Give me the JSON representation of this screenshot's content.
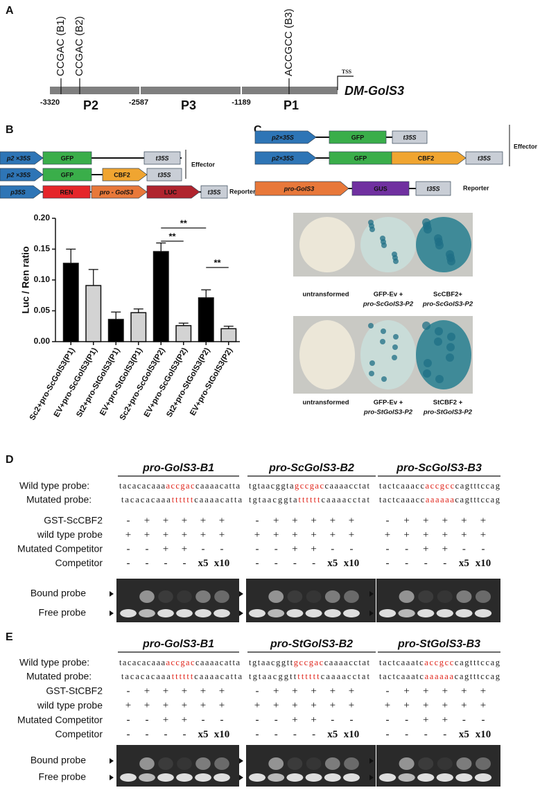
{
  "panel_a": {
    "letter": "A",
    "sites": [
      "CCGAC (B1)",
      "CCGAC (B2)",
      "ACCGCC (B3)"
    ],
    "tss": "TSS",
    "gene": "DM-GolS3",
    "positions": [
      "-3320",
      "-2587",
      "-1189"
    ],
    "regions": [
      "P2",
      "P3",
      "P1"
    ]
  },
  "panel_b": {
    "letter": "B",
    "constructs": [
      [
        "p2 ×35S",
        "GFP",
        "t35S"
      ],
      [
        "p2 ×35S",
        "GFP",
        "CBF2",
        "t35S"
      ],
      [
        "p35S",
        "REN",
        "pro - GolS3",
        "LUC",
        "t35S"
      ]
    ],
    "effector": "Effector",
    "reporter": "Reporter"
  },
  "chart_data": {
    "type": "bar",
    "y_label": "Luc / Ren ratio",
    "categories": [
      "Sc2+pro-ScGolS3(P1)",
      "EV+pro-ScGolS3(P1)",
      "St2+pro-StGolS3(P1)",
      "EV+pro-StGolS3(P1)",
      "Sc2+pro-ScGolS3(P2)",
      "EV+pro-ScGolS3(P2)",
      "St2+pro-StGolS3(P2)",
      "EV+pro-StGolS3(P2)"
    ],
    "values": [
      0.127,
      0.091,
      0.036,
      0.047,
      0.146,
      0.026,
      0.071,
      0.021
    ],
    "errors": [
      0.023,
      0.026,
      0.012,
      0.006,
      0.014,
      0.004,
      0.013,
      0.004
    ],
    "colors": [
      "#000000",
      "#d3d3d3",
      "#000000",
      "#d3d3d3",
      "#000000",
      "#d3d3d3",
      "#000000",
      "#d3d3d3"
    ],
    "ylim": [
      0,
      0.2
    ],
    "yticks": [
      {
        "value": 0,
        "label": "0.00"
      },
      {
        "value": 0.05,
        "label": "0.05"
      },
      {
        "value": 0.1,
        "label": "0.10"
      },
      {
        "value": 0.15,
        "label": "0.15"
      },
      {
        "value": 0.2,
        "label": "0.20"
      }
    ],
    "significance": [
      "**",
      "**",
      "**"
    ]
  },
  "panel_c": {
    "letter": "C",
    "constructs": [
      [
        "p2×35S",
        "GFP",
        "t35S"
      ],
      [
        "p2×35S",
        "GFP",
        "CBF2",
        "t35S"
      ],
      [
        "pro-GolS3",
        "GUS",
        "t35S"
      ]
    ],
    "effector": "Effector",
    "reporter": "Reporter",
    "leaf_rows": [
      [
        [
          "untransformed"
        ],
        [
          "GFP-Ev +",
          "pro-ScGolS3-P2"
        ],
        [
          "ScCBF2+",
          "pro-ScGolS3-P2"
        ]
      ],
      [
        [
          "untransformed"
        ],
        [
          "GFP-Ev +",
          "pro-StGolS3-P2"
        ],
        [
          "StCBF2 +",
          "pro-StGolS3-P2"
        ]
      ]
    ]
  },
  "panel_d": {
    "letter": "D",
    "wild_label": "Wild type probe:",
    "mutated_label": "Mutated probe:",
    "row_labels": [
      "GST-ScCBF2",
      "wild type probe",
      "Mutated Competitor",
      "Competitor"
    ],
    "bound": "Bound probe",
    "free": "Free probe",
    "blocks": [
      {
        "title": "pro-GolS3-B1",
        "wild": [
          "tacacacaaa",
          "accgac",
          "caaaacatta"
        ],
        "mutated": [
          "tacacacaaa",
          "tttttt",
          "caaaacatta"
        ],
        "lanes": [
          [
            "-",
            "+",
            "+",
            "+",
            "+",
            "+"
          ],
          [
            "+",
            "+",
            "+",
            "+",
            "+",
            "+"
          ],
          [
            "-",
            "-",
            "+",
            "+",
            "-",
            "-"
          ],
          [
            "-",
            "-",
            "-",
            "-",
            "x5",
            "x10"
          ]
        ]
      },
      {
        "title": "pro-ScGolS3-B2",
        "wild": [
          "tgtaacggta",
          "gccgac",
          "caaaacctat"
        ],
        "mutated": [
          "tgtaacggta",
          "tttttt",
          "caaaacctat"
        ],
        "lanes": [
          [
            "-",
            "+",
            "+",
            "+",
            "+",
            "+"
          ],
          [
            "+",
            "+",
            "+",
            "+",
            "+",
            "+"
          ],
          [
            "-",
            "-",
            "+",
            "+",
            "-",
            "-"
          ],
          [
            "-",
            "-",
            "-",
            "-",
            "x5",
            "x10"
          ]
        ]
      },
      {
        "title": "pro-ScGolS3-B3",
        "wild": [
          "tactcaaacc",
          "accgcc",
          "cagtttccag"
        ],
        "mutated": [
          "tactcaaacc",
          "aaaaaa",
          "cagtttccag"
        ],
        "lanes": [
          [
            "-",
            "+",
            "+",
            "+",
            "+",
            "+"
          ],
          [
            "+",
            "+",
            "+",
            "+",
            "+",
            "+"
          ],
          [
            "-",
            "-",
            "+",
            "+",
            "-",
            "-"
          ],
          [
            "-",
            "-",
            "-",
            "-",
            "x5",
            "x10"
          ]
        ]
      }
    ]
  },
  "panel_e": {
    "letter": "E",
    "wild_label": "Wild type probe:",
    "mutated_label": "Mutated probe:",
    "row_labels": [
      "GST-StCBF2",
      "wild type probe",
      "Mutated Competitor",
      "Competitor"
    ],
    "bound": "Bound probe",
    "free": "Free probe",
    "blocks": [
      {
        "title": "pro-GolS3-B1",
        "wild": [
          "tacacacaaa",
          "accgac",
          "caaaacatta"
        ],
        "mutated": [
          "tacacacaaa",
          "tttttt",
          "caaaacatta"
        ],
        "lanes": [
          [
            "-",
            "+",
            "+",
            "+",
            "+",
            "+"
          ],
          [
            "+",
            "+",
            "+",
            "+",
            "+",
            "+"
          ],
          [
            "-",
            "-",
            "+",
            "+",
            "-",
            "-"
          ],
          [
            "-",
            "-",
            "-",
            "-",
            "x5",
            "x10"
          ]
        ]
      },
      {
        "title": "pro-StGolS3-B2",
        "wild": [
          "tgtaacggtt",
          "gccgac",
          "caaaacctat"
        ],
        "mutated": [
          "tgtaacggtt",
          "tttttt",
          "caaaacctat"
        ],
        "lanes": [
          [
            "-",
            "+",
            "+",
            "+",
            "+",
            "+"
          ],
          [
            "+",
            "+",
            "+",
            "+",
            "+",
            "+"
          ],
          [
            "-",
            "-",
            "+",
            "+",
            "-",
            "-"
          ],
          [
            "-",
            "-",
            "-",
            "-",
            "x5",
            "x10"
          ]
        ]
      },
      {
        "title": "pro-StGolS3-B3",
        "wild": [
          "tactcaaatc",
          "accgcc",
          "cagtttccag"
        ],
        "mutated": [
          "tactcaaatc",
          "aaaaaa",
          "cagtttccag"
        ],
        "lanes": [
          [
            "-",
            "+",
            "+",
            "+",
            "+",
            "+"
          ],
          [
            "+",
            "+",
            "+",
            "+",
            "+",
            "+"
          ],
          [
            "-",
            "-",
            "+",
            "+",
            "-",
            "-"
          ],
          [
            "-",
            "-",
            "-",
            "-",
            "x5",
            "x10"
          ]
        ]
      }
    ]
  }
}
